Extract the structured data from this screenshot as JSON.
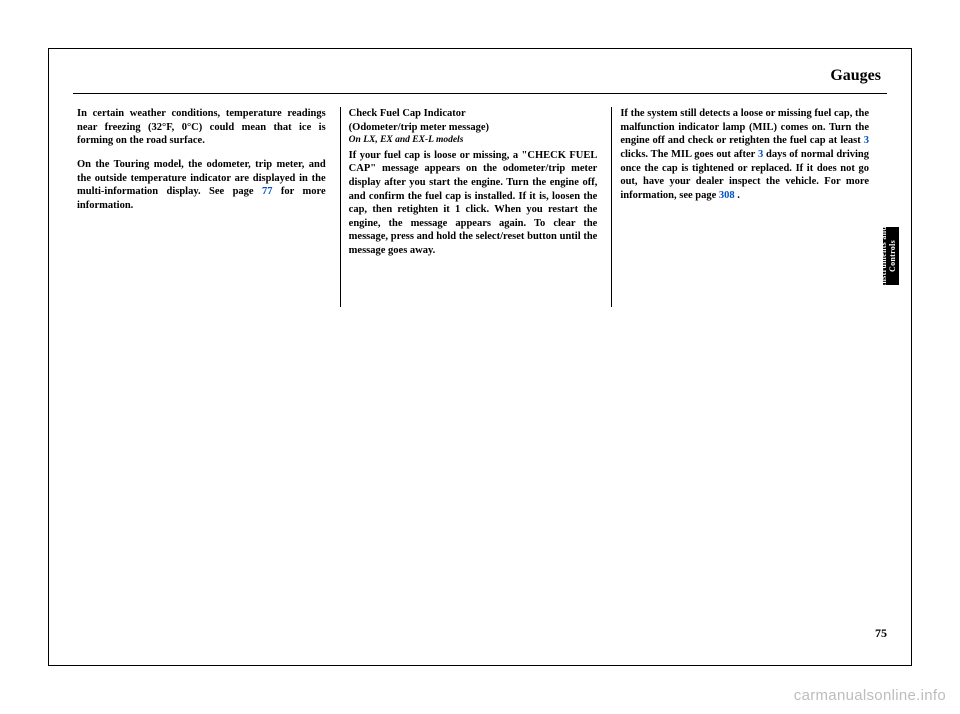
{
  "header": {
    "title": "Gauges"
  },
  "col1": {
    "p1": "In certain weather conditions, temperature readings near freezing (32°F, 0°C) could mean that ice is forming on the road surface.",
    "p2_a": "On the Touring model, the odometer, trip meter, and the outside temperature indicator are displayed in the multi-information display. See page ",
    "p2_link": "77",
    "p2_b": " for more information."
  },
  "col2": {
    "heading": "Check Fuel Cap Indicator",
    "subheading": "(Odometer/trip meter message)",
    "model": "On LX, EX and EX-L models",
    "p1": "If your fuel cap is loose or missing, a \"CHECK FUEL CAP\" message appears on the odometer/trip meter display after you start the engine. Turn the engine off, and confirm the fuel cap is installed. If it is, loosen the cap, then retighten it 1 click. When you restart the engine, the message appears again. To clear the message, press and hold the select/reset button until the message goes away."
  },
  "col3": {
    "p1_a": "If the system still detects a loose or missing fuel cap, the malfunction indicator lamp (MIL) comes on. Turn the engine off and check or retighten the fuel cap at least ",
    "p1_link1": "3",
    "p1_b": " clicks. The MIL goes out after ",
    "p1_link2": "3",
    "p1_c": " days of normal driving once the cap is tightened or replaced. If it does not go out, have your dealer inspect the vehicle. For more information, see page ",
    "p1_link3": "308",
    "p1_d": " ."
  },
  "sidebar": {
    "label": "Instruments and Controls"
  },
  "pageNumber": "75",
  "watermark": "carmanualsonline.info"
}
